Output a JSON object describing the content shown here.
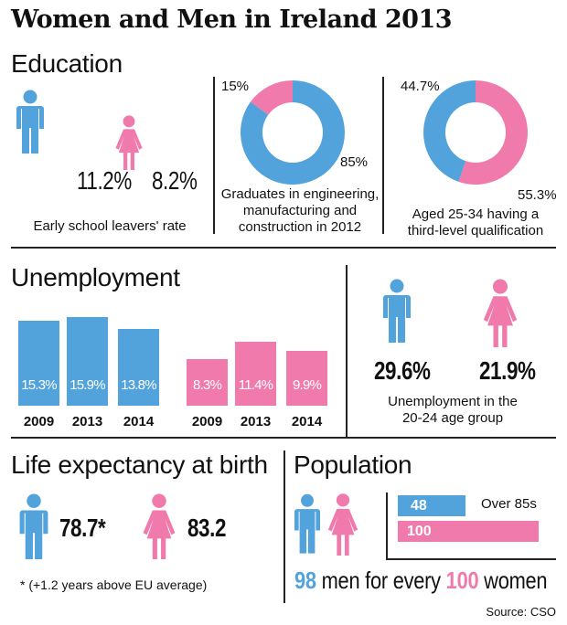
{
  "title": "Women and Men in Ireland 2013",
  "colors": {
    "men": "#52a3db",
    "women": "#ef7aab"
  },
  "education": {
    "heading": "Education",
    "early_school_leavers": {
      "men": "11.2%",
      "women": "8.2%",
      "caption": "Early school leavers' rate"
    },
    "graduates": {
      "women_label": "15%",
      "men_label": "85%",
      "women": 15,
      "men": 85,
      "caption": [
        "Graduates in engineering,",
        "manufacturing and",
        "construction in 2012"
      ]
    },
    "third_level": {
      "men_label": "44.7%",
      "women_label": "55.3%",
      "men": 44.7,
      "women": 55.3,
      "caption": [
        "Aged 25-34 having a",
        "third-level qualification"
      ]
    }
  },
  "unemployment": {
    "heading": "Unemployment",
    "age_group": {
      "men": "29.6%",
      "women": "21.9%",
      "caption": [
        "Unemployment in the",
        "20-24 age group"
      ]
    }
  },
  "chart_data": [
    {
      "type": "bar",
      "title": "Unemployment",
      "categories": [
        "2009",
        "2013",
        "2014"
      ],
      "series": [
        {
          "name": "Men",
          "values": [
            15.3,
            15.9,
            13.8
          ],
          "labels": [
            "15.3%",
            "15.9%",
            "13.8%"
          ]
        },
        {
          "name": "Women",
          "values": [
            8.3,
            11.4,
            9.9
          ],
          "labels": [
            "8.3%",
            "11.4%",
            "9.9%"
          ]
        }
      ]
    },
    {
      "type": "bar",
      "title": "Population over 85s",
      "categories": [
        "Men",
        "Women"
      ],
      "values": [
        48,
        100
      ],
      "labels": [
        "48",
        "100"
      ],
      "annotation": "Over 85s"
    }
  ],
  "life_expectancy": {
    "heading": "Life expectancy at birth",
    "men": "78.7*",
    "women": "83.2",
    "note": "* (+1.2 years above EU average)"
  },
  "population": {
    "heading": "Population",
    "men_num": "98",
    "mid": " men for every ",
    "women_num": "100",
    "end": " women"
  },
  "source": "Source: CSO"
}
